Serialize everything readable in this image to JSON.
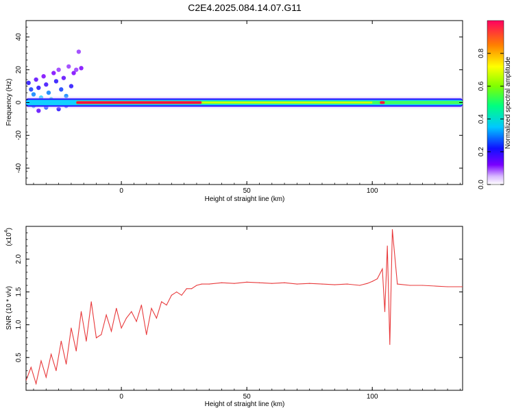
{
  "title": "C2E4.2025.084.14.07.G11",
  "chart_data": [
    {
      "type": "heatmap",
      "xlabel": "Height of straight line (km)",
      "ylabel": "Frequency (Hz)",
      "xlim": [
        -38,
        136
      ],
      "ylim": [
        -50,
        50
      ],
      "xticks": [
        0,
        50,
        100
      ],
      "yticks": [
        40,
        20,
        0,
        -20,
        -40
      ],
      "xtick_labels": [
        "0",
        "50",
        "100"
      ],
      "ytick_labels": [
        "40",
        "20",
        "0",
        "-20",
        "-40"
      ],
      "colorbar": {
        "label": "Normalized spectral amplitude",
        "range": [
          0,
          1
        ],
        "ticks": [
          0.0,
          0.2,
          0.4,
          0.6,
          0.8
        ],
        "tick_labels": [
          "0.0",
          "0.2",
          "0.4",
          "0.6",
          "0.8"
        ]
      },
      "ridge": {
        "frequency_hz": 0,
        "x_start": -38,
        "x_end": 136,
        "peak_amplitude_segments": [
          [
            -18,
            32
          ],
          [
            103,
            105
          ]
        ]
      },
      "scatter_points": [
        {
          "x": -37,
          "y": 12,
          "a": 0.2
        },
        {
          "x": -36,
          "y": 8,
          "a": 0.25
        },
        {
          "x": -35,
          "y": 5,
          "a": 0.3
        },
        {
          "x": -34,
          "y": 14,
          "a": 0.15
        },
        {
          "x": -33,
          "y": 9,
          "a": 0.2
        },
        {
          "x": -32,
          "y": 3,
          "a": 0.35
        },
        {
          "x": -31,
          "y": 16,
          "a": 0.12
        },
        {
          "x": -30,
          "y": 11,
          "a": 0.18
        },
        {
          "x": -29,
          "y": 6,
          "a": 0.3
        },
        {
          "x": -28,
          "y": 2,
          "a": 0.4
        },
        {
          "x": -27,
          "y": 18,
          "a": 0.12
        },
        {
          "x": -26,
          "y": 13,
          "a": 0.2
        },
        {
          "x": -25,
          "y": 20,
          "a": 0.1
        },
        {
          "x": -24,
          "y": 8,
          "a": 0.25
        },
        {
          "x": -23,
          "y": 15,
          "a": 0.15
        },
        {
          "x": -22,
          "y": 4,
          "a": 0.3
        },
        {
          "x": -21,
          "y": 22,
          "a": 0.1
        },
        {
          "x": -20,
          "y": 10,
          "a": 0.2
        },
        {
          "x": -19,
          "y": 18,
          "a": 0.12
        },
        {
          "x": -18,
          "y": 20,
          "a": 0.1
        },
        {
          "x": -17,
          "y": 31,
          "a": 0.1
        },
        {
          "x": -16,
          "y": 21,
          "a": 0.12
        },
        {
          "x": -35,
          "y": -2,
          "a": 0.3
        },
        {
          "x": -30,
          "y": -3,
          "a": 0.25
        },
        {
          "x": -25,
          "y": -4,
          "a": 0.2
        },
        {
          "x": -33,
          "y": -5,
          "a": 0.15
        },
        {
          "x": -28,
          "y": -1,
          "a": 0.35
        },
        {
          "x": -22,
          "y": -2,
          "a": 0.25
        }
      ]
    },
    {
      "type": "line",
      "xlabel": "Height of straight line (km)",
      "ylabel": "SNR (10 * v/v)",
      "y_scale_label": "(x10",
      "y_scale_exponent": "4",
      "xlim": [
        -38,
        136
      ],
      "ylim": [
        0,
        2.5
      ],
      "xticks": [
        0,
        50,
        100
      ],
      "yticks": [
        0.5,
        1.0,
        1.5,
        2.0
      ],
      "xtick_labels": [
        "0",
        "50",
        "100"
      ],
      "ytick_labels": [
        "0.5",
        "1.0",
        "1.5",
        "2.0"
      ],
      "series": [
        {
          "color": "#e8383a",
          "x": [
            -38,
            -36,
            -34,
            -32,
            -30,
            -28,
            -26,
            -24,
            -22,
            -20,
            -18,
            -16,
            -14,
            -12,
            -10,
            -8,
            -6,
            -4,
            -2,
            0,
            2,
            4,
            6,
            8,
            10,
            12,
            14,
            16,
            18,
            20,
            22,
            24,
            26,
            28,
            30,
            32,
            35,
            40,
            45,
            50,
            55,
            60,
            65,
            70,
            75,
            80,
            85,
            90,
            95,
            98,
            100,
            102,
            104,
            105,
            106,
            107,
            108,
            110,
            115,
            120,
            125,
            130,
            136
          ],
          "y": [
            0.15,
            0.35,
            0.1,
            0.45,
            0.2,
            0.55,
            0.3,
            0.75,
            0.4,
            0.95,
            0.6,
            1.2,
            0.75,
            1.35,
            0.8,
            0.85,
            1.15,
            0.9,
            1.25,
            0.95,
            1.1,
            1.2,
            1.05,
            1.3,
            0.85,
            1.25,
            1.1,
            1.35,
            1.3,
            1.45,
            1.5,
            1.45,
            1.55,
            1.55,
            1.6,
            1.62,
            1.62,
            1.64,
            1.63,
            1.65,
            1.64,
            1.63,
            1.64,
            1.62,
            1.63,
            1.62,
            1.61,
            1.62,
            1.6,
            1.63,
            1.66,
            1.7,
            1.85,
            1.2,
            2.2,
            0.7,
            2.45,
            1.62,
            1.6,
            1.6,
            1.59,
            1.58,
            1.58
          ]
        }
      ]
    }
  ]
}
